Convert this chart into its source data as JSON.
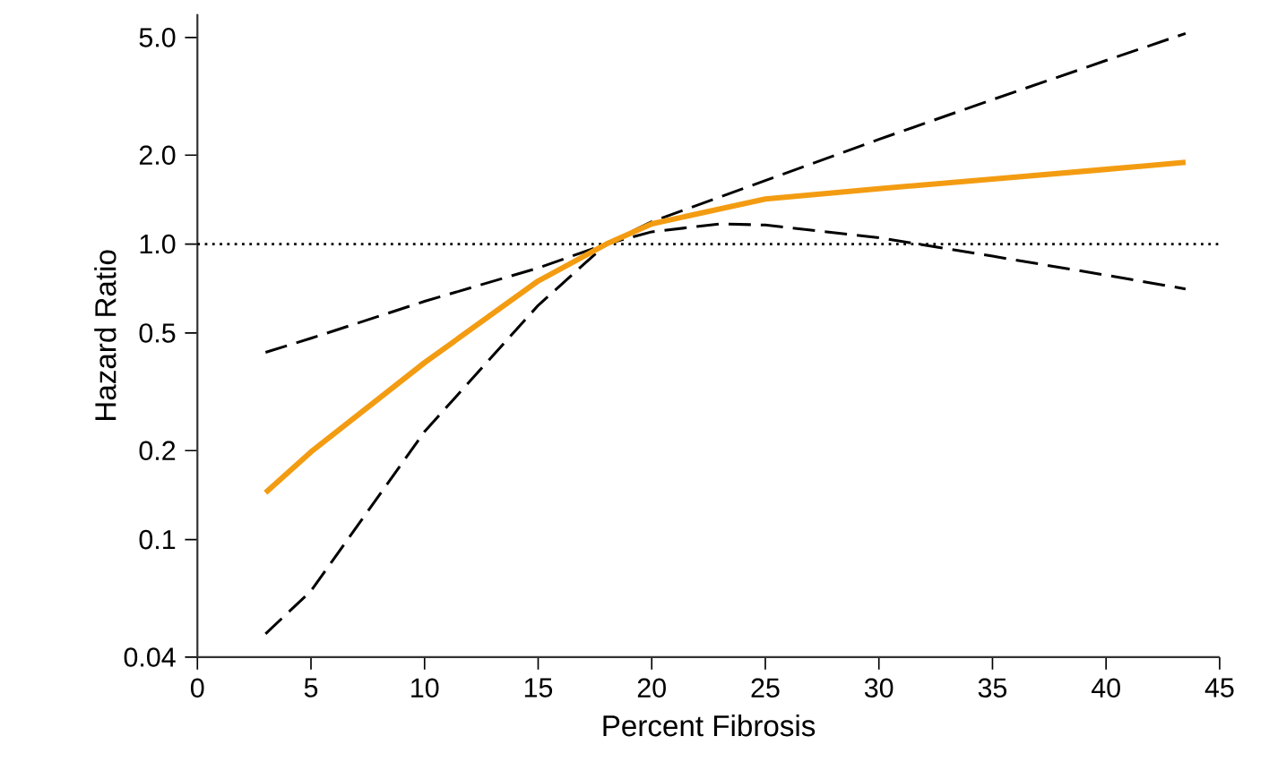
{
  "chart_data": {
    "type": "line",
    "xlabel": "Percent Fibrosis",
    "ylabel": "Hazard Ratio",
    "log": "y",
    "grid": false,
    "marker": "none",
    "xlim": [
      0,
      45
    ],
    "xticks": [
      0,
      5,
      10,
      15,
      20,
      25,
      30,
      35,
      40,
      45
    ],
    "ylim": [
      0.04,
      6
    ],
    "yticks": [
      0.04,
      0.1,
      0.2,
      0.5,
      {
        "value": 1,
        "label": "1.0"
      },
      {
        "value": 2,
        "label": "2.0"
      },
      {
        "value": 5,
        "label": "5.0"
      }
    ],
    "x": [
      3,
      5,
      10,
      15,
      18,
      20,
      25,
      30,
      35,
      40,
      43.5
    ],
    "series": [
      {
        "color": "#000000",
        "line_style": "dashed",
        "values": [
          0.43,
          0.48,
          0.64,
          0.83,
          1.0,
          1.19,
          1.64,
          2.26,
          3.08,
          4.18,
          5.16
        ]
      },
      {
        "color": "#000000",
        "line_style": "dashed",
        "x": [
          3,
          5,
          10,
          15,
          18,
          20,
          23,
          25,
          30,
          35,
          40,
          43.5
        ],
        "values": [
          0.048,
          0.067,
          0.232,
          0.62,
          1.0,
          1.1,
          1.17,
          1.16,
          1.05,
          0.91,
          0.785,
          0.705
        ]
      },
      {
        "color": "#f39c12",
        "line_style": "solid",
        "values": [
          0.144,
          0.198,
          0.397,
          0.75,
          1.0,
          1.17,
          1.42,
          1.54,
          1.66,
          1.79,
          1.89
        ]
      }
    ],
    "ref_lines": [
      {
        "axis": "y",
        "value": 1,
        "line_style": "dotted",
        "color": "#000000"
      }
    ]
  }
}
